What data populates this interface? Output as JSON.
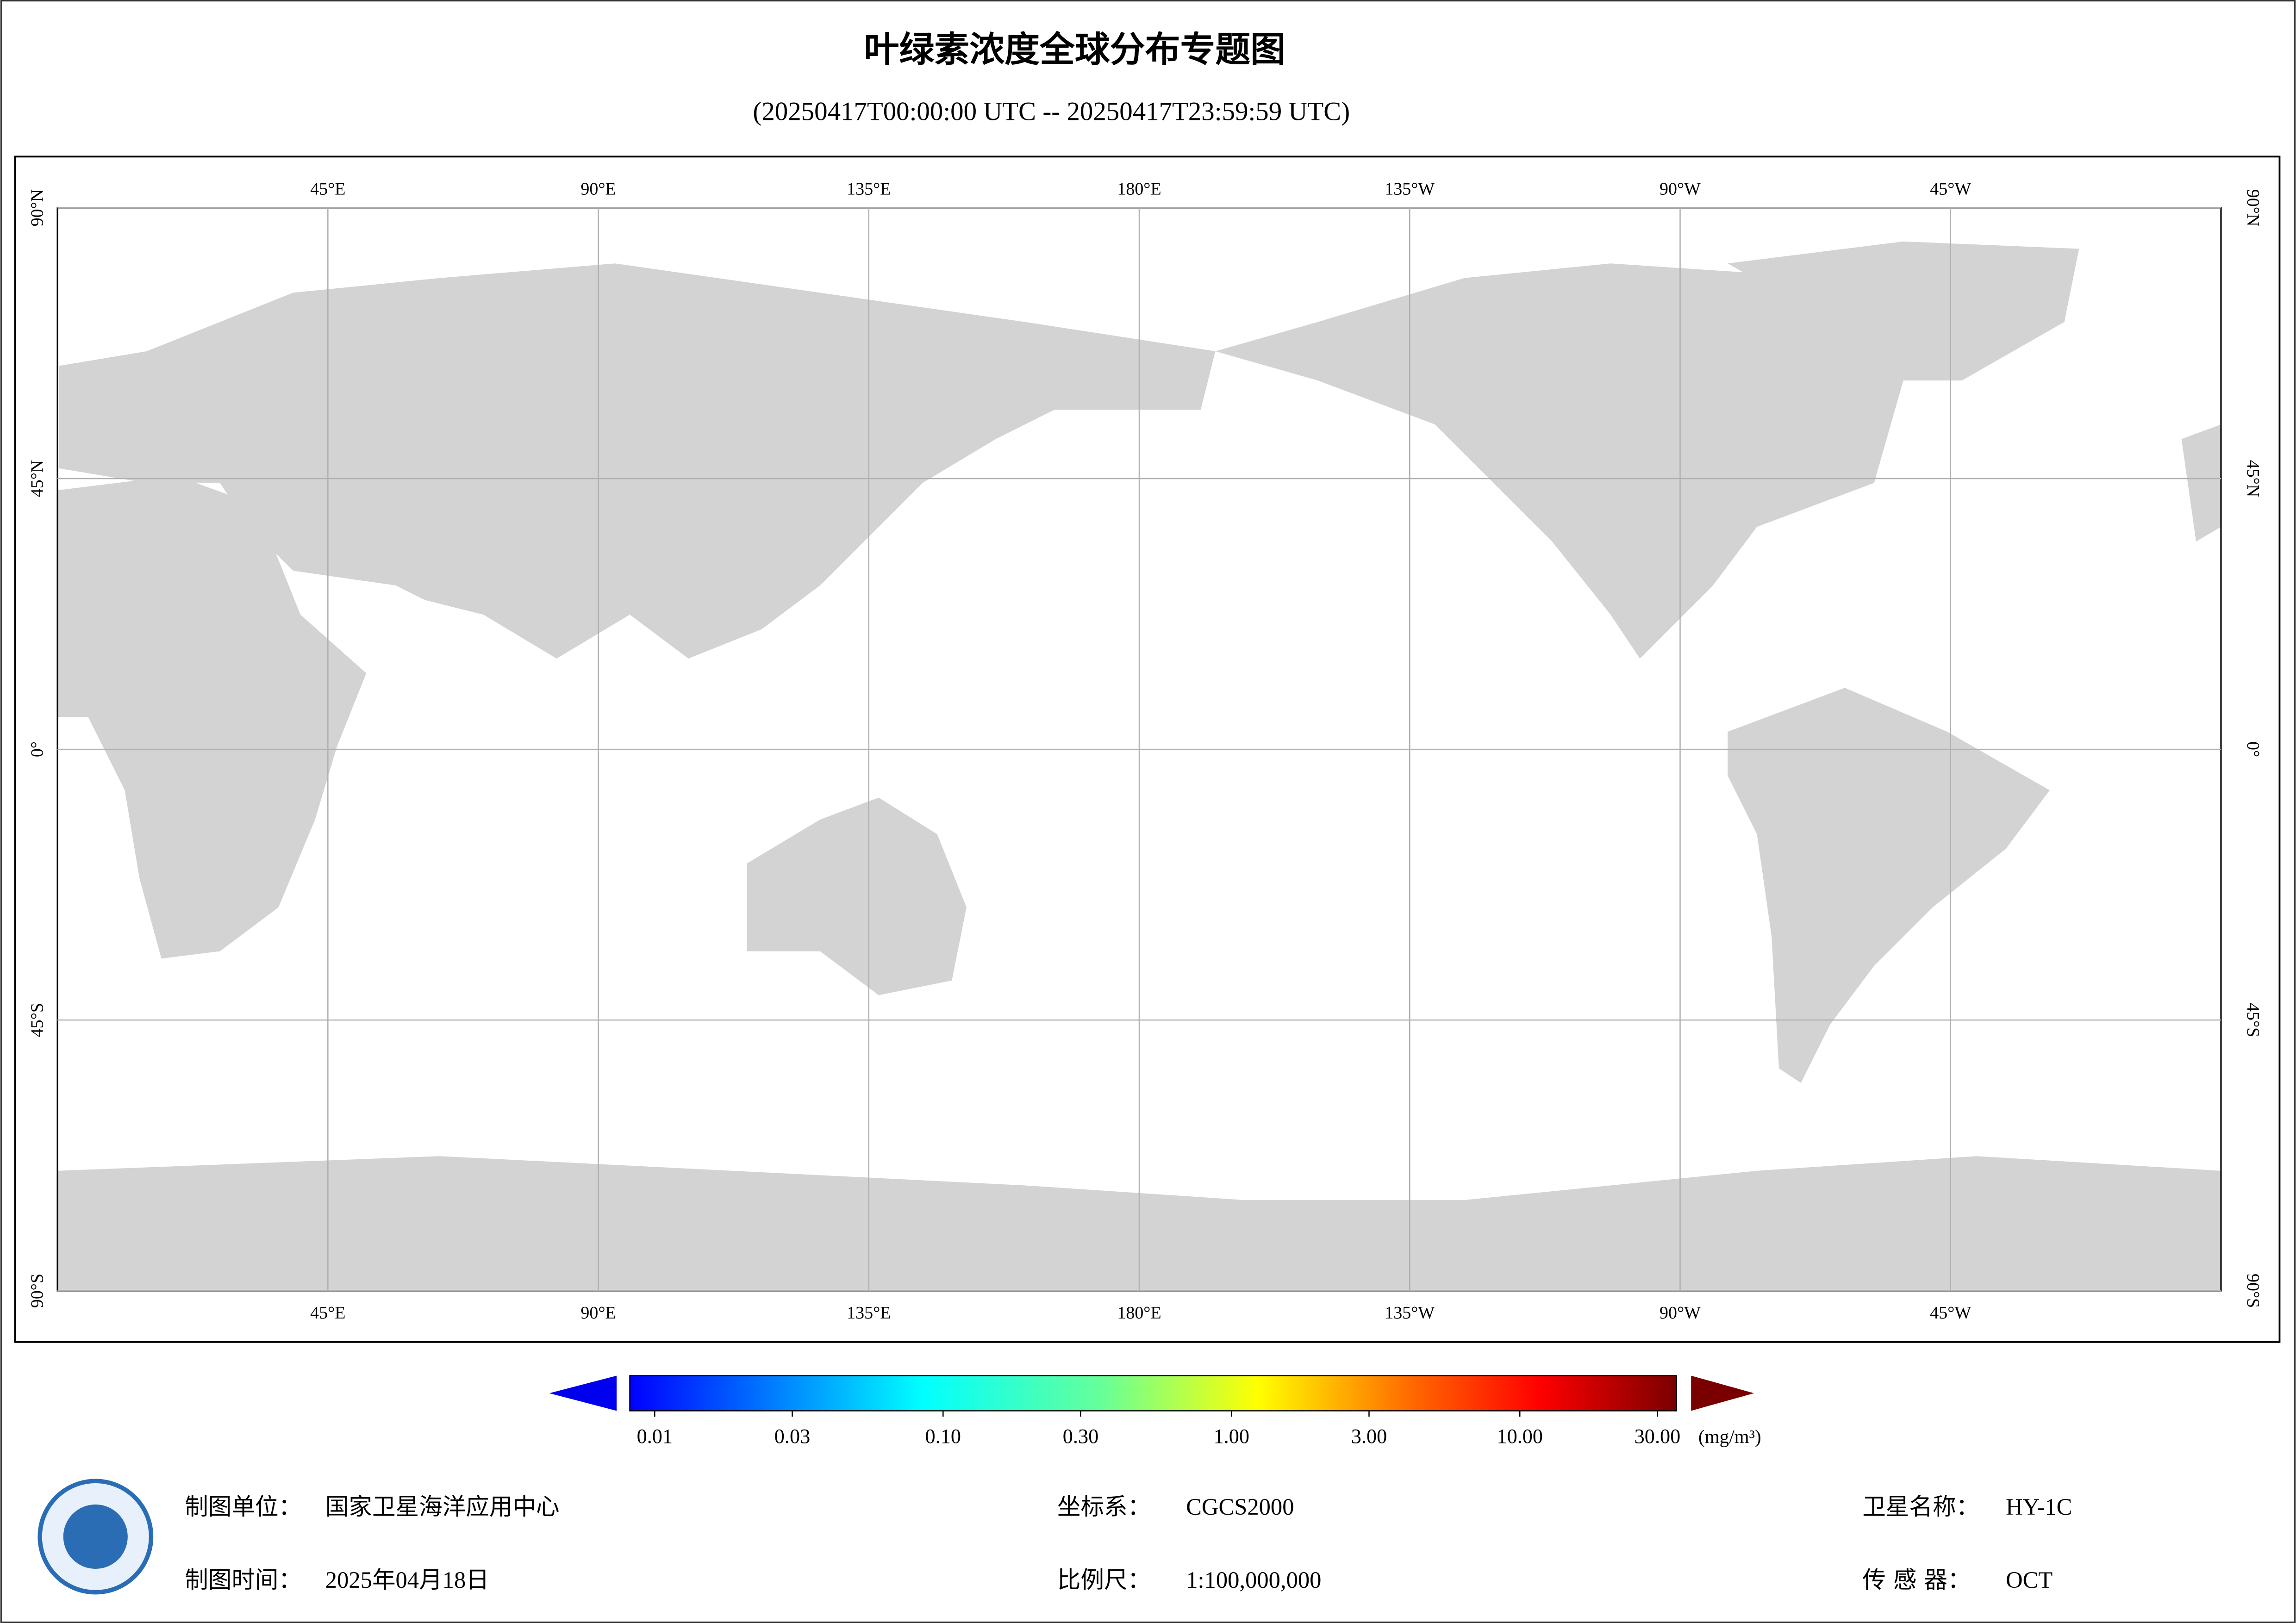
{
  "header": {
    "title": "叶绿素浓度全球分布专题图",
    "subtitle": "(20250417T00:00:00 UTC -- 20250417T23:59:59 UTC)"
  },
  "map": {
    "lon_ticks": [
      {
        "value": 45,
        "label": "45°E"
      },
      {
        "value": 90,
        "label": "90°E"
      },
      {
        "value": 135,
        "label": "135°E"
      },
      {
        "value": 180,
        "label": "180°E"
      },
      {
        "value": -135,
        "label": "135°W"
      },
      {
        "value": -90,
        "label": "90°W"
      },
      {
        "value": -45,
        "label": "45°W"
      }
    ],
    "lat_ticks": [
      {
        "value": 90,
        "label": "90°N"
      },
      {
        "value": 45,
        "label": "45°N"
      },
      {
        "value": 0,
        "label": "0°"
      },
      {
        "value": -45,
        "label": "45°S"
      },
      {
        "value": -90,
        "label": "90°S"
      }
    ]
  },
  "colorbar": {
    "ticks": [
      {
        "value": 0.01,
        "label": "0.01"
      },
      {
        "value": 0.03,
        "label": "0.03"
      },
      {
        "value": 0.1,
        "label": "0.10"
      },
      {
        "value": 0.3,
        "label": "0.30"
      },
      {
        "value": 1,
        "label": "1.00"
      },
      {
        "value": 3,
        "label": "3.00"
      },
      {
        "value": 10,
        "label": "10.00"
      },
      {
        "value": 30,
        "label": "30.00"
      }
    ],
    "unit": "(mg/m³)"
  },
  "footer": {
    "producer": {
      "label": "制图单位：",
      "value": "国家卫星海洋应用中心"
    },
    "date": {
      "label": "制图时间：",
      "value": "2025年04月18日"
    },
    "crs": {
      "label": "坐标系：",
      "value": "CGCS2000"
    },
    "scale": {
      "label": "比例尺：",
      "value": "1:100,000,000"
    },
    "satellite": {
      "label": "卫星名称：",
      "value": "HY-1C"
    },
    "sensor": {
      "label": "传 感 器：",
      "value": "OCT"
    }
  }
}
